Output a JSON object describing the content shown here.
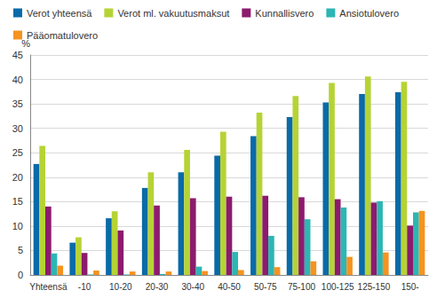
{
  "chart_data": {
    "type": "bar",
    "y_label": "%",
    "categories": [
      "Yhteensä",
      "-10",
      "10-20",
      "20-30",
      "30-40",
      "40-50",
      "50-75",
      "75-100",
      "100-125",
      "125-150",
      "150-"
    ],
    "series": [
      {
        "name": "Verot yhteensä",
        "color": "#0a6aa8",
        "values": [
          22.7,
          6.6,
          11.6,
          17.8,
          21.0,
          24.4,
          28.4,
          32.3,
          35.3,
          37.0,
          37.4
        ]
      },
      {
        "name": "Verot ml. vakuutusmaksut",
        "color": "#b6d335",
        "values": [
          26.4,
          7.7,
          13.0,
          21.0,
          25.6,
          29.3,
          33.2,
          36.6,
          39.3,
          40.6,
          39.5
        ]
      },
      {
        "name": "Kunnallisvero",
        "color": "#8c1b6e",
        "values": [
          14.0,
          4.5,
          9.1,
          14.2,
          15.7,
          16.0,
          16.2,
          15.9,
          15.5,
          14.8,
          10.1
        ]
      },
      {
        "name": "Ansiotulovero",
        "color": "#2cb6b4",
        "values": [
          4.4,
          0.1,
          0.1,
          0.2,
          1.7,
          4.7,
          8.0,
          11.4,
          13.8,
          15.1,
          12.8
        ]
      },
      {
        "name": "Pääomatulovero",
        "color": "#f5931f",
        "values": [
          1.9,
          0.9,
          0.7,
          0.7,
          0.8,
          1.0,
          1.6,
          2.8,
          3.7,
          4.6,
          13.1
        ]
      }
    ],
    "ylim": [
      0,
      45
    ],
    "yticks": [
      0,
      5,
      10,
      15,
      20,
      25,
      30,
      35,
      40,
      45
    ],
    "grid": true,
    "legend": "top"
  }
}
